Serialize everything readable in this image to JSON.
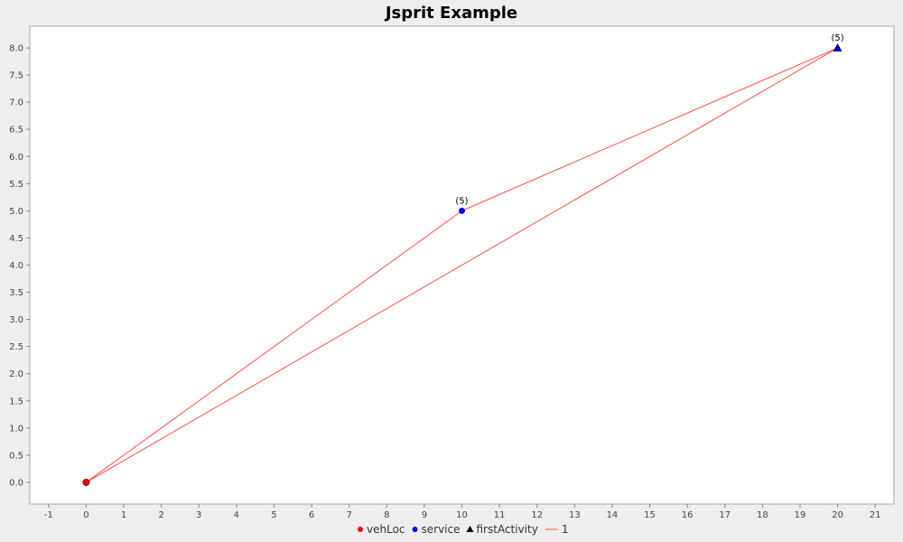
{
  "chart_data": {
    "type": "scatter",
    "title": "Jsprit Example",
    "xlabel": "",
    "ylabel": "",
    "xlim": [
      -1.5,
      21.5
    ],
    "ylim": [
      -0.4,
      8.4
    ],
    "x_ticks": [
      -1,
      0,
      1,
      2,
      3,
      4,
      5,
      6,
      7,
      8,
      9,
      10,
      11,
      12,
      13,
      14,
      15,
      16,
      17,
      18,
      19,
      20,
      21
    ],
    "y_ticks": [
      0.0,
      0.5,
      1.0,
      1.5,
      2.0,
      2.5,
      3.0,
      3.5,
      4.0,
      4.5,
      5.0,
      5.5,
      6.0,
      6.5,
      7.0,
      7.5,
      8.0
    ],
    "grid": false,
    "legend_position": "bottom",
    "series": [
      {
        "name": "vehLoc",
        "kind": "point",
        "marker": "circle",
        "color": "#ff0000",
        "points": [
          {
            "x": 0,
            "y": 0
          }
        ]
      },
      {
        "name": "service",
        "kind": "point",
        "marker": "circle",
        "color": "#0000ff",
        "points": [
          {
            "x": 10,
            "y": 5,
            "label": "(5)"
          }
        ]
      },
      {
        "name": "firstActivity",
        "kind": "point",
        "marker": "triangle",
        "color": "#000000",
        "points": []
      },
      {
        "name": "1",
        "kind": "line",
        "color": "#ff4c4c",
        "points": [
          {
            "x": 0,
            "y": 0
          },
          {
            "x": 10,
            "y": 5
          },
          {
            "x": 20,
            "y": 8
          },
          {
            "x": 0,
            "y": 0
          }
        ]
      }
    ],
    "extra_points": [
      {
        "x": 20,
        "y": 8,
        "marker": "triangle",
        "color": "#0000aa",
        "label": "(5)"
      }
    ]
  }
}
